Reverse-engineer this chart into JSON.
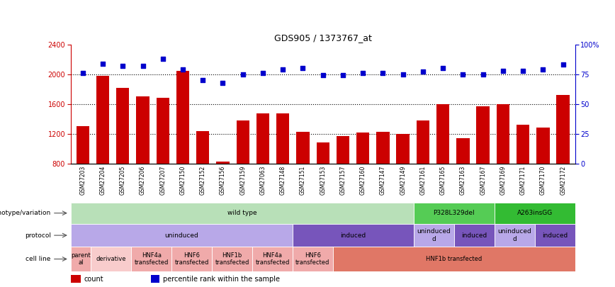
{
  "title": "GDS905 / 1373767_at",
  "samples": [
    "GSM27203",
    "GSM27204",
    "GSM27205",
    "GSM27206",
    "GSM27207",
    "GSM27150",
    "GSM27152",
    "GSM27156",
    "GSM27159",
    "GSM27063",
    "GSM27148",
    "GSM27151",
    "GSM27153",
    "GSM27157",
    "GSM27160",
    "GSM27147",
    "GSM27149",
    "GSM27161",
    "GSM27165",
    "GSM27163",
    "GSM27167",
    "GSM27169",
    "GSM27171",
    "GSM27170",
    "GSM27172"
  ],
  "counts": [
    1300,
    1980,
    1820,
    1700,
    1680,
    2050,
    1240,
    830,
    1380,
    1470,
    1470,
    1230,
    1080,
    1170,
    1220,
    1230,
    1200,
    1380,
    1600,
    1140,
    1570,
    1600,
    1320,
    1280,
    1720
  ],
  "percentiles": [
    76,
    84,
    82,
    82,
    88,
    79,
    70,
    68,
    75,
    76,
    79,
    80,
    74,
    74,
    76,
    76,
    75,
    77,
    80,
    75,
    75,
    78,
    78,
    79,
    83
  ],
  "ylim_left": [
    800,
    2400
  ],
  "ylim_right": [
    0,
    100
  ],
  "yticks_left": [
    800,
    1200,
    1600,
    2000,
    2400
  ],
  "yticks_right": [
    0,
    25,
    50,
    75,
    100
  ],
  "ytick_right_labels": [
    "0",
    "25",
    "50",
    "75",
    "100%"
  ],
  "bar_color": "#cc0000",
  "dot_color": "#0000cc",
  "genotype_sections": [
    {
      "label": "wild type",
      "start": 0,
      "end": 17,
      "color": "#b8e0b8"
    },
    {
      "label": "P328L329del",
      "start": 17,
      "end": 21,
      "color": "#55cc55"
    },
    {
      "label": "A263insGG",
      "start": 21,
      "end": 25,
      "color": "#33bb33"
    }
  ],
  "protocol_sections": [
    {
      "label": "uninduced",
      "start": 0,
      "end": 11,
      "color": "#b8a8e8"
    },
    {
      "label": "induced",
      "start": 11,
      "end": 17,
      "color": "#7755bb"
    },
    {
      "label": "uninduced\nd",
      "start": 17,
      "end": 19,
      "color": "#b8a8e8"
    },
    {
      "label": "induced",
      "start": 19,
      "end": 21,
      "color": "#7755bb"
    },
    {
      "label": "uninduced\nd",
      "start": 21,
      "end": 23,
      "color": "#b8a8e8"
    },
    {
      "label": "induced",
      "start": 23,
      "end": 25,
      "color": "#7755bb"
    }
  ],
  "cellline_sections": [
    {
      "label": "parent\nal",
      "start": 0,
      "end": 1,
      "color": "#f0aaaa"
    },
    {
      "label": "derivative",
      "start": 1,
      "end": 3,
      "color": "#f8cccc"
    },
    {
      "label": "HNF4a\ntransfected",
      "start": 3,
      "end": 5,
      "color": "#f0aaaa"
    },
    {
      "label": "HNF6\ntransfected",
      "start": 5,
      "end": 7,
      "color": "#f0aaaa"
    },
    {
      "label": "HNF1b\ntransfected",
      "start": 7,
      "end": 9,
      "color": "#f0aaaa"
    },
    {
      "label": "HNF4a\ntransfected",
      "start": 9,
      "end": 11,
      "color": "#f0aaaa"
    },
    {
      "label": "HNF6\ntransfected",
      "start": 11,
      "end": 13,
      "color": "#f0aaaa"
    },
    {
      "label": "HNF1b transfected",
      "start": 13,
      "end": 25,
      "color": "#e07766"
    }
  ],
  "row_labels": [
    "genotype/variation",
    "protocol",
    "cell line"
  ],
  "legend_items": [
    {
      "label": "count",
      "color": "#cc0000",
      "marker": "square"
    },
    {
      "label": "percentile rank within the sample",
      "color": "#0000cc",
      "marker": "square"
    }
  ]
}
